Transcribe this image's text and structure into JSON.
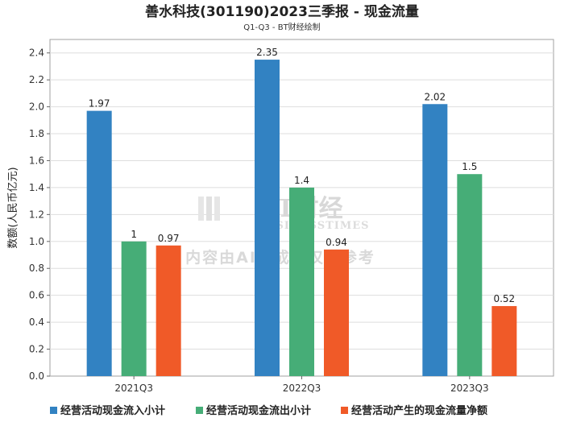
{
  "chart_data": {
    "type": "bar",
    "title": "善水科技(301190)2023三季报 - 现金流量",
    "subtitle": "Q1-Q3 - BT财经绘制",
    "ylabel": "数额(人民币亿元)",
    "xlabel": "",
    "ylim": [
      0,
      2.5
    ],
    "yticks": [
      "0.0",
      "0.2",
      "0.4",
      "0.6",
      "0.8",
      "1.0",
      "1.2",
      "1.4",
      "1.6",
      "1.8",
      "2.0",
      "2.2",
      "2.4"
    ],
    "categories": [
      "2021Q3",
      "2022Q3",
      "2023Q3"
    ],
    "series": [
      {
        "name": "经营活动现金流入小计",
        "color": "#3282c2",
        "values": [
          1.97,
          2.35,
          2.02
        ],
        "labels": [
          "1.97",
          "2.35",
          "2.02"
        ]
      },
      {
        "name": "经营活动现金流出小计",
        "color": "#46ad77",
        "values": [
          1.0,
          1.4,
          1.5
        ],
        "labels": [
          "1",
          "1.4",
          "1.5"
        ]
      },
      {
        "name": "经营活动产生的现金流量净额",
        "color": "#f05a28",
        "values": [
          0.97,
          0.94,
          0.52
        ],
        "labels": [
          "0.97",
          "0.94",
          "0.52"
        ]
      }
    ],
    "grid": true,
    "legend": "bottom"
  },
  "watermark": {
    "brand": "BT财经",
    "brand_en": "BUSINESSTIMES",
    "notice": "内容由AI生成，仅供参考"
  }
}
